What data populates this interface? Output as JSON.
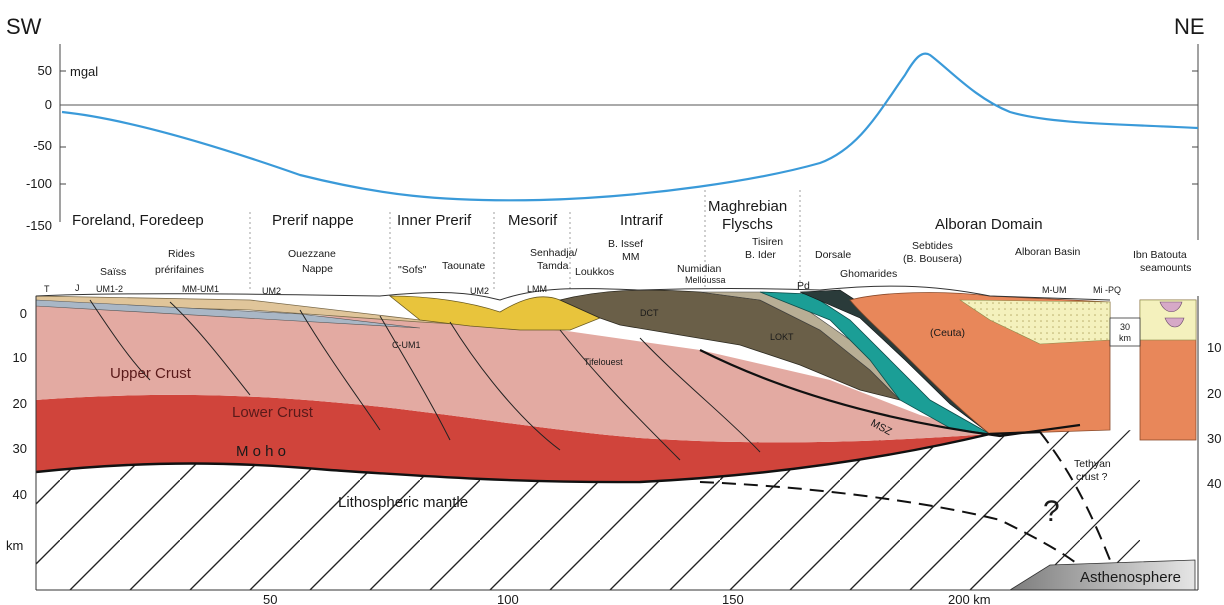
{
  "orientation": {
    "left": "SW",
    "right": "NE"
  },
  "gravity": {
    "unit": "mgal",
    "ticks": [
      "50",
      "0",
      "-50",
      "-100",
      "-150"
    ],
    "line_color": "#3a9ad9"
  },
  "domains": [
    "Foreland, Foredeep",
    "Prerif nappe",
    "Inner Prerif",
    "Mesorif",
    "Intrarif",
    "Maghrebian",
    "Flyschs",
    "Alboran  Domain"
  ],
  "units": {
    "saiss": "Saïss",
    "rides_1": "Rides",
    "rides_2": "prérifaines",
    "ouezzane_1": "Ouezzane",
    "ouezzane_2": "Nappe",
    "sofs": "\"Sofs\"",
    "taounate": "Taounate",
    "senhadja_1": "Senhadja/",
    "senhadja_2": "Tamda",
    "loukkos": "Loukkos",
    "bissef_1": "B. Issef",
    "bissef_2": "MM",
    "numidian": "Numidian",
    "melloussa": "Melloussa",
    "tisiren_1": "Tisiren",
    "tisiren_2": "B. Ider",
    "pd": "Pd",
    "dorsale": "Dorsale",
    "ghomarides": "Ghomarides",
    "sebtides_1": "Sebtides",
    "sebtides_2": "(B. Bousera)",
    "alboran_basin": "Alboran  Basin",
    "ibn_1": "Ibn Batouta",
    "ibn_2": "seamounts",
    "mum": "M-UM",
    "mpq": "Mi -PQ",
    "t": "T",
    "j": "J",
    "um12": "UM1-2",
    "mmum1": "MM-UM1",
    "um2a": "UM2",
    "um2b": "UM2",
    "lmm": "LMM",
    "cum1": "C-UM1",
    "tifelouest": "Tifelouest",
    "dct": "DCT",
    "lokt": "LOKT",
    "ceuta": "(Ceuta)",
    "msz": "MSZ",
    "box_1": "30",
    "box_2": "km"
  },
  "layers": {
    "upper_crust": "Upper Crust",
    "lower_crust": "Lower Crust",
    "moho": "M o h o",
    "mantle": "Lithospheric mantle",
    "tethyan_1": "Tethyan",
    "tethyan_2": "crust ?",
    "question": "?",
    "asthenosphere": "Asthenosphere"
  },
  "depth_axis": {
    "left_ticks": [
      "0",
      "10",
      "20",
      "30",
      "40"
    ],
    "left_unit": "km",
    "right_ticks": [
      "10",
      "20",
      "30",
      "40"
    ]
  },
  "distance_axis": {
    "ticks": [
      "50",
      "100",
      "150",
      "200 km"
    ]
  },
  "colors": {
    "upper_crust": "#e3aaa2",
    "lower_crust": "#d0443b",
    "prerif": "#e0c59a",
    "yellow": "#e8c43c",
    "flysch": "#6a5f48",
    "teal": "#1b9e96",
    "alboran": "#e8875a",
    "basin": "#f4f1bd"
  }
}
